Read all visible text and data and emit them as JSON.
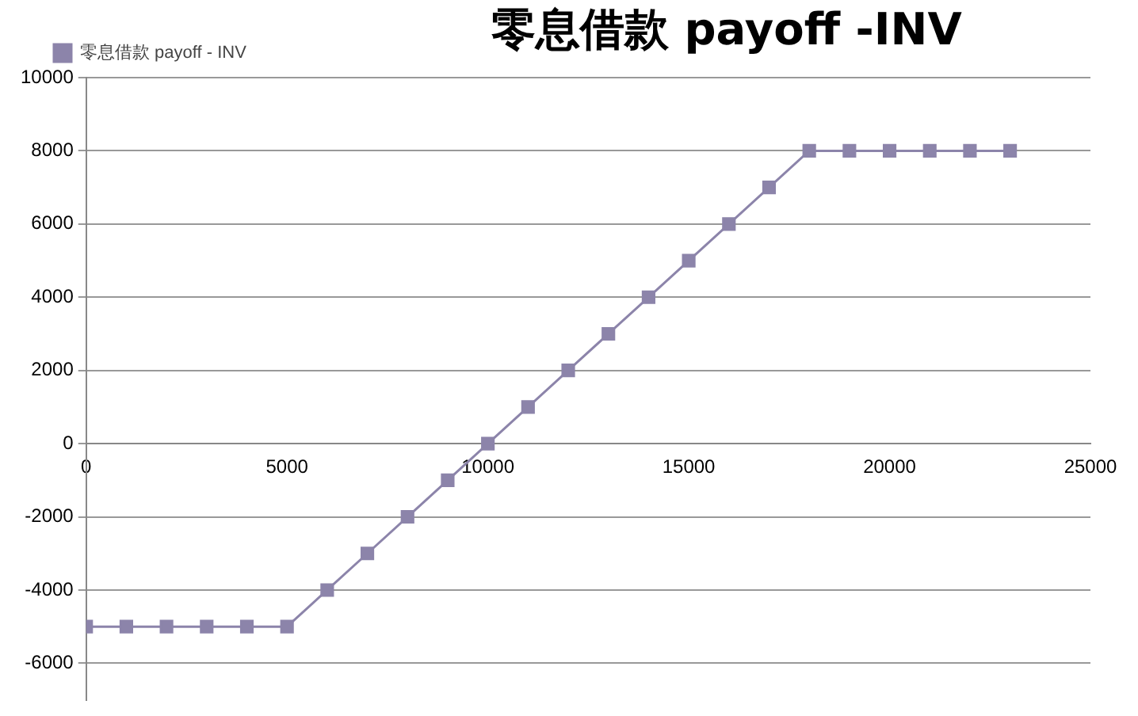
{
  "chart_data": {
    "type": "line",
    "title": "零息借款 payoff -INV",
    "x": [
      0,
      1000,
      2000,
      3000,
      4000,
      5000,
      6000,
      7000,
      8000,
      9000,
      10000,
      11000,
      12000,
      13000,
      14000,
      15000,
      16000,
      17000,
      18000,
      19000,
      20000,
      21000,
      22000,
      23000
    ],
    "series": [
      {
        "name": "零息借款 payoff - INV",
        "color": "#8c84aa",
        "values": [
          -5000,
          -5000,
          -5000,
          -5000,
          -5000,
          -5000,
          -4000,
          -3000,
          -2000,
          -1000,
          0,
          1000,
          2000,
          3000,
          4000,
          5000,
          6000,
          7000,
          8000,
          8000,
          8000,
          8000,
          8000,
          8000
        ]
      }
    ],
    "xlim": [
      0,
      25000
    ],
    "xticks": [
      0,
      5000,
      10000,
      15000,
      20000,
      25000
    ],
    "ylim": [
      -7000,
      10000
    ],
    "yticks": [
      -6000,
      -4000,
      -2000,
      0,
      2000,
      4000,
      6000,
      8000,
      10000
    ],
    "grid": "y",
    "legend": "top left",
    "marker": "square",
    "line_style": "solid"
  }
}
